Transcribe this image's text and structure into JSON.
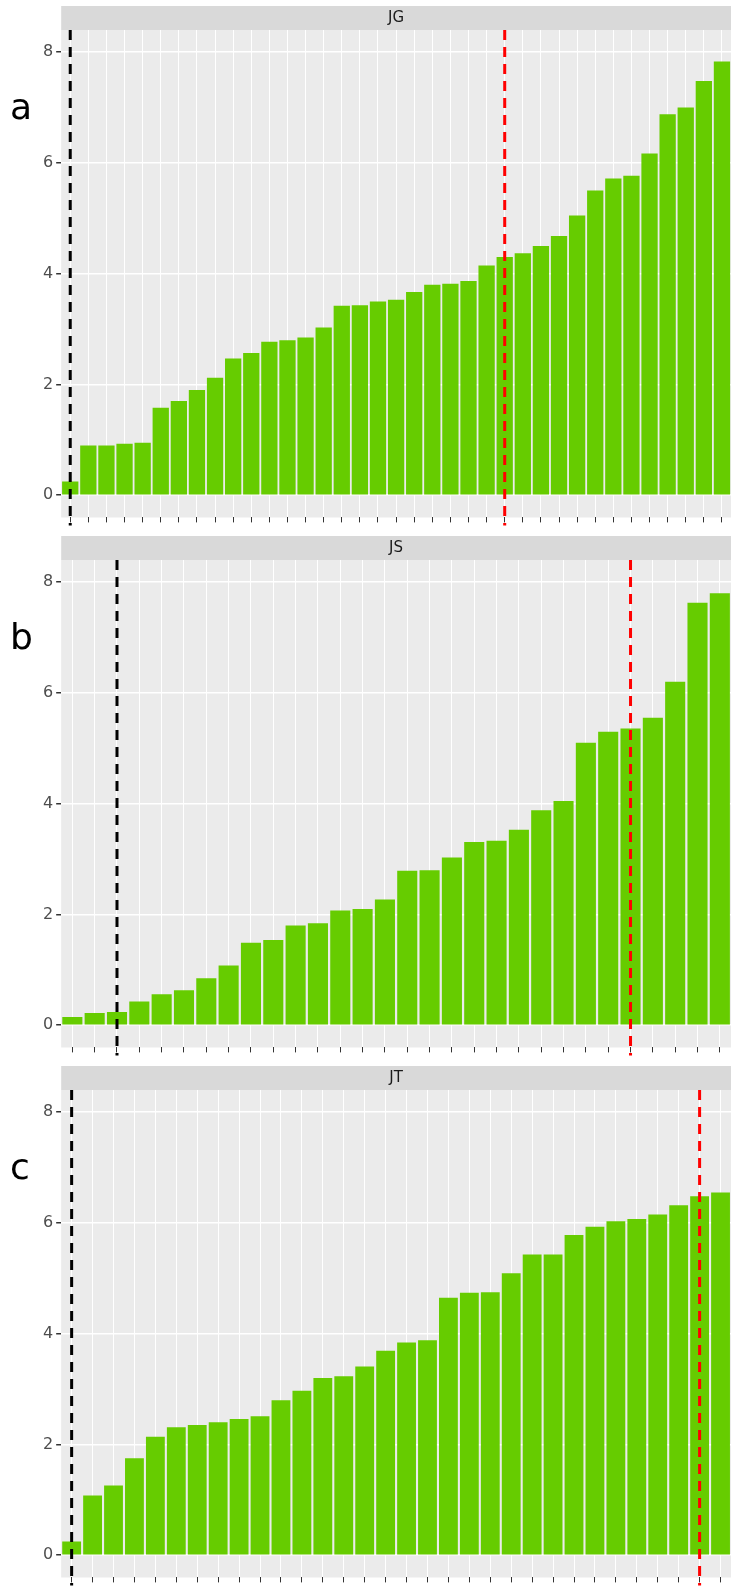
{
  "chart_data": [
    {
      "type": "bar",
      "title": "JG",
      "annotations": [
        "a"
      ],
      "color": "#66cc00",
      "grid": true,
      "tick_labels": "y",
      "categories": [
        null,
        null,
        null,
        null,
        null,
        null,
        null,
        null,
        null,
        null,
        null,
        null,
        null,
        null,
        null,
        null,
        null,
        null,
        null,
        null,
        null,
        null,
        null,
        null,
        null,
        null,
        null,
        null,
        null,
        null,
        null,
        null,
        null,
        null,
        null,
        null,
        null
      ],
      "values": [
        0.25,
        0.9,
        0.9,
        0.93,
        0.95,
        1.58,
        1.7,
        1.9,
        2.12,
        2.47,
        2.57,
        2.77,
        2.8,
        2.85,
        3.03,
        3.42,
        3.43,
        3.5,
        3.53,
        3.67,
        3.8,
        3.82,
        3.87,
        4.15,
        4.3,
        4.37,
        4.5,
        4.68,
        5.05,
        5.5,
        5.72,
        5.77,
        6.17,
        6.88,
        7.0,
        7.48,
        7.83
      ],
      "ylim": [
        -0.4,
        8.4
      ],
      "yticks": [
        0,
        2,
        4,
        6,
        8
      ]
    },
    {
      "type": "bar",
      "title": "JS",
      "annotations": [
        "b"
      ],
      "color": "#66cc00",
      "grid": true,
      "tick_labels": "y",
      "categories": [
        null,
        null,
        null,
        null,
        null,
        null,
        null,
        null,
        null,
        null,
        null,
        null,
        null,
        null,
        null,
        null,
        null,
        null,
        null,
        null,
        null,
        null,
        null,
        null,
        null,
        null,
        null,
        null,
        null,
        null
      ],
      "values": [
        0.15,
        0.22,
        0.24,
        0.43,
        0.56,
        0.63,
        0.85,
        1.08,
        1.49,
        1.54,
        1.8,
        1.84,
        2.07,
        2.1,
        2.27,
        2.79,
        2.8,
        3.03,
        3.31,
        3.33,
        3.53,
        3.88,
        4.05,
        5.1,
        5.3,
        5.36,
        5.55,
        6.2,
        7.63,
        7.8
      ],
      "ylim": [
        -0.4,
        8.4
      ],
      "yticks": [
        0,
        2,
        4,
        6,
        8
      ]
    },
    {
      "type": "bar",
      "title": "JT",
      "annotations": [
        "c"
      ],
      "color": "#66cc00",
      "grid": true,
      "tick_labels": "y",
      "categories": [
        null,
        null,
        null,
        null,
        null,
        null,
        null,
        null,
        null,
        null,
        null,
        null,
        null,
        null,
        null,
        null,
        null,
        null,
        null,
        null,
        null,
        null,
        null,
        null,
        null,
        null,
        null,
        null,
        null,
        null,
        null,
        null
      ],
      "values": [
        0.25,
        1.08,
        1.26,
        1.75,
        2.14,
        2.31,
        2.35,
        2.4,
        2.46,
        2.51,
        2.8,
        2.97,
        3.2,
        3.23,
        3.41,
        3.69,
        3.84,
        3.88,
        4.65,
        4.74,
        4.75,
        5.09,
        5.43,
        5.43,
        5.78,
        5.93,
        6.03,
        6.07,
        6.15,
        6.32,
        6.48,
        6.55
      ],
      "ylim": [
        -0.4,
        8.4
      ],
      "yticks": [
        0,
        2,
        4,
        6,
        8
      ]
    }
  ]
}
